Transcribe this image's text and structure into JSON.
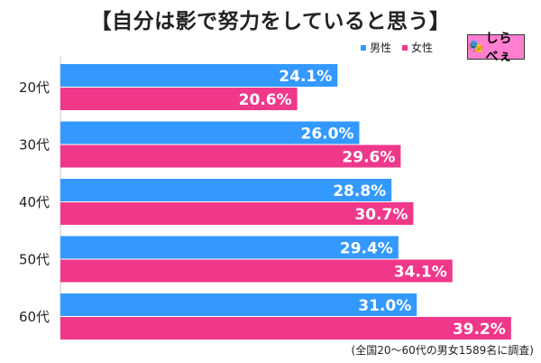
{
  "title": "【自分は影で努力をしていると思う】",
  "legend": [
    {
      "label": "男性",
      "color": "#3399ff"
    },
    {
      "label": "女性",
      "color": "#f0388b"
    }
  ],
  "brand": {
    "name": "しらべぇ"
  },
  "footnote": "(全国20〜60代の男女1589名に調査)",
  "chart_data": {
    "type": "bar",
    "orientation": "horizontal",
    "categories": [
      "20代",
      "30代",
      "40代",
      "50代",
      "60代"
    ],
    "series": [
      {
        "name": "男性",
        "values": [
          24.1,
          26.0,
          28.8,
          29.4,
          31.0
        ],
        "color": "#3399ff"
      },
      {
        "name": "女性",
        "values": [
          20.6,
          29.6,
          30.7,
          34.1,
          39.2
        ],
        "color": "#f0388b"
      }
    ],
    "value_suffix": "%",
    "xlim": [
      0,
      40
    ],
    "grid": false
  }
}
